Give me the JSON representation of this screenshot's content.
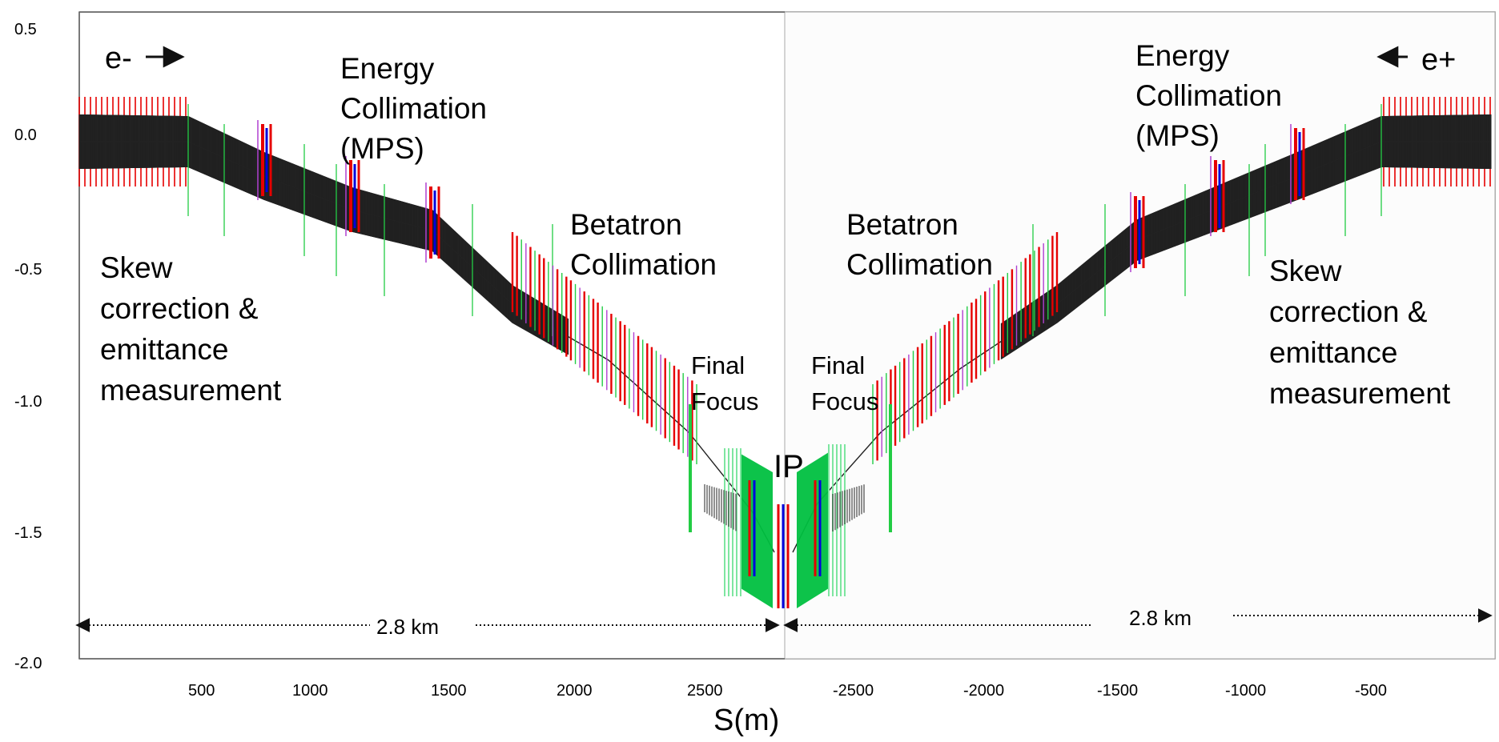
{
  "figure": {
    "xlabel": "S(m)",
    "y_ticks": [
      "0.5",
      "0.0",
      "-0.5",
      "-1.0",
      "-1.5",
      "-2.0"
    ],
    "x_ticks_left": [
      "500",
      "1000",
      "1500",
      "2000",
      "2500"
    ],
    "x_ticks_right": [
      "-2500",
      "-2000",
      "-1500",
      "-1000",
      "-500"
    ]
  },
  "labels": {
    "electron": "e-",
    "positron": "e+",
    "energy_collimation_left": [
      "Energy",
      "Collimation",
      "(MPS)"
    ],
    "energy_collimation_right": [
      "Energy",
      "Collimation",
      "(MPS)"
    ],
    "betatron_left": [
      "Betatron",
      "Collimation"
    ],
    "betatron_right": [
      "Betatron",
      "Collimation"
    ],
    "skew_left": [
      "Skew",
      "correction &",
      "emittance",
      "measurement"
    ],
    "skew_right": [
      "Skew",
      "correction &",
      "emittance",
      "measurement"
    ],
    "final_focus_left": [
      "Final",
      "Focus"
    ],
    "final_focus_right": [
      "Final",
      "Focus"
    ],
    "ip": "IP",
    "distance_left": "2.8 km",
    "distance_right": "2.8 km"
  },
  "colors": {
    "dipole": "#e60000",
    "quad": "#0000dd",
    "sextupole": "#b040d0",
    "aperture": "#22cc44",
    "ff_green": "#00c040",
    "beamline": "#222222",
    "axis": "#555555"
  }
}
